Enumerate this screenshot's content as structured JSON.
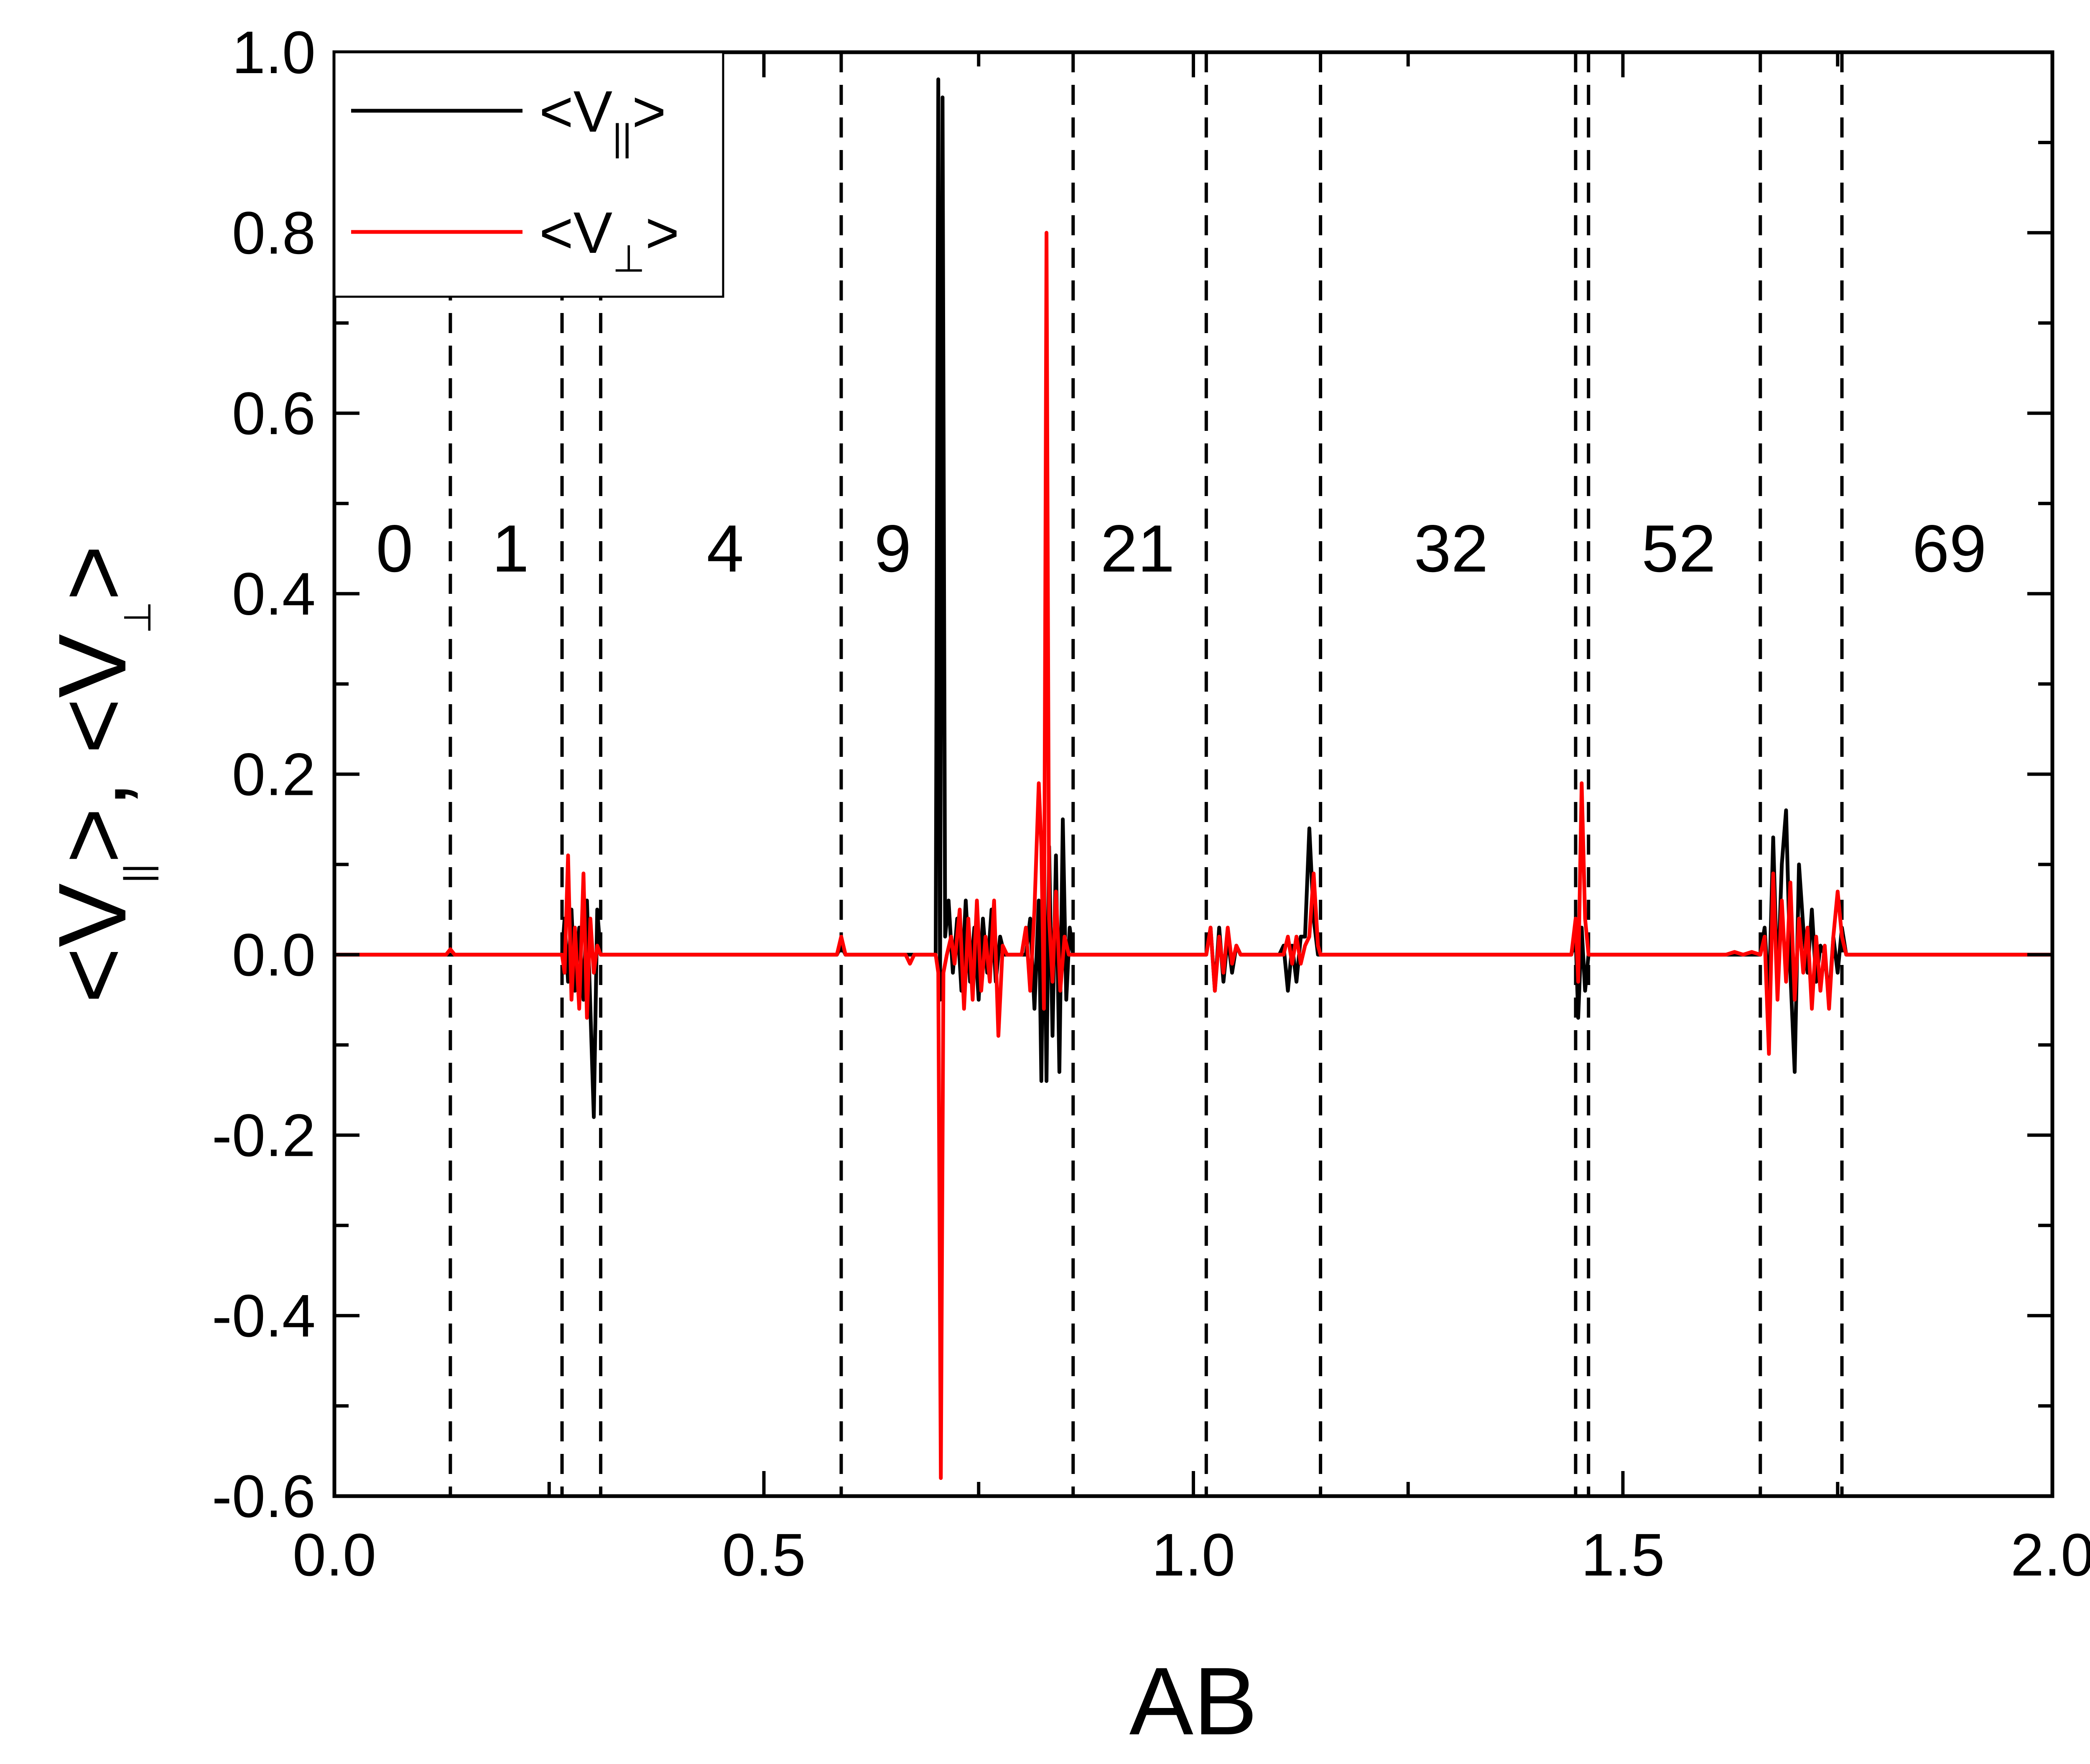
{
  "chart_data": {
    "type": "line",
    "xlabel": "AB",
    "ylabel": {
      "prefix": "<V",
      "parallel_sub": "||",
      "sep": ">, <V",
      "perp_sub": "⊥",
      "suffix": ">"
    },
    "xlim": [
      0.0,
      2.0
    ],
    "ylim": [
      -0.6,
      1.0
    ],
    "x_ticks": [
      0.0,
      0.5,
      1.0,
      1.5,
      2.0
    ],
    "x_tick_labels": [
      "0.0",
      "0.5",
      "1.0",
      "1.5",
      "2.0"
    ],
    "y_ticks": [
      -0.6,
      -0.4,
      -0.2,
      0.0,
      0.2,
      0.4,
      0.6,
      0.8,
      1.0
    ],
    "y_tick_labels": [
      "-0.6",
      "-0.4",
      "-0.2",
      "0.0",
      "0.2",
      "0.4",
      "0.6",
      "0.8",
      "1.0"
    ],
    "grid": false,
    "legend": {
      "placement": "top-left",
      "entries": [
        {
          "text": "<V",
          "sub": "||",
          "close": ">",
          "color": "#000000"
        },
        {
          "text": "<V",
          "sub": "⊥",
          "close": ">",
          "color": "#ff0000"
        }
      ]
    },
    "vlines": [
      0.135,
      0.265,
      0.31,
      0.59,
      0.86,
      1.015,
      1.148,
      1.445,
      1.46,
      1.66,
      1.755
    ],
    "region_labels": [
      {
        "text": "0",
        "x": 0.07
      },
      {
        "text": "1",
        "x": 0.205
      },
      {
        "text": "4",
        "x": 0.455
      },
      {
        "text": "9",
        "x": 0.65
      },
      {
        "text": "21",
        "x": 0.935
      },
      {
        "text": "32",
        "x": 1.3
      },
      {
        "text": "52",
        "x": 1.565
      },
      {
        "text": "69",
        "x": 1.88
      }
    ],
    "region_label_y": 0.45,
    "series": [
      {
        "name": "<V||>",
        "color": "#000000",
        "points": [
          [
            0.0,
            0.0
          ],
          [
            0.265,
            0.0
          ],
          [
            0.268,
            0.04
          ],
          [
            0.272,
            -0.03
          ],
          [
            0.276,
            0.05
          ],
          [
            0.28,
            -0.04
          ],
          [
            0.285,
            0.03
          ],
          [
            0.29,
            -0.05
          ],
          [
            0.294,
            0.06
          ],
          [
            0.298,
            -0.06
          ],
          [
            0.302,
            -0.18
          ],
          [
            0.306,
            0.05
          ],
          [
            0.31,
            0.0
          ],
          [
            0.585,
            0.0
          ],
          [
            0.59,
            0.01
          ],
          [
            0.595,
            0.0
          ],
          [
            0.7,
            0.0
          ],
          [
            0.703,
            0.97
          ],
          [
            0.705,
            -0.05
          ],
          [
            0.708,
            0.95
          ],
          [
            0.711,
            0.02
          ],
          [
            0.715,
            0.06
          ],
          [
            0.72,
            -0.02
          ],
          [
            0.725,
            0.04
          ],
          [
            0.73,
            -0.04
          ],
          [
            0.735,
            0.06
          ],
          [
            0.74,
            -0.03
          ],
          [
            0.745,
            0.03
          ],
          [
            0.75,
            -0.05
          ],
          [
            0.755,
            0.04
          ],
          [
            0.76,
            -0.02
          ],
          [
            0.765,
            0.05
          ],
          [
            0.77,
            -0.03
          ],
          [
            0.775,
            0.02
          ],
          [
            0.78,
            0.0
          ],
          [
            0.805,
            0.0
          ],
          [
            0.81,
            0.04
          ],
          [
            0.815,
            -0.06
          ],
          [
            0.82,
            0.06
          ],
          [
            0.823,
            -0.14
          ],
          [
            0.826,
            0.1
          ],
          [
            0.829,
            -0.14
          ],
          [
            0.832,
            0.12
          ],
          [
            0.836,
            -0.09
          ],
          [
            0.84,
            0.11
          ],
          [
            0.844,
            -0.13
          ],
          [
            0.848,
            0.15
          ],
          [
            0.852,
            -0.05
          ],
          [
            0.856,
            0.03
          ],
          [
            0.86,
            0.0
          ],
          [
            1.015,
            0.0
          ],
          [
            1.02,
            0.03
          ],
          [
            1.025,
            -0.04
          ],
          [
            1.03,
            0.03
          ],
          [
            1.035,
            -0.03
          ],
          [
            1.04,
            0.02
          ],
          [
            1.045,
            -0.02
          ],
          [
            1.05,
            0.01
          ],
          [
            1.055,
            0.0
          ],
          [
            1.1,
            0.0
          ],
          [
            1.105,
            0.01
          ],
          [
            1.11,
            -0.04
          ],
          [
            1.115,
            0.01
          ],
          [
            1.12,
            -0.03
          ],
          [
            1.125,
            0.02
          ],
          [
            1.13,
            0.02
          ],
          [
            1.135,
            0.14
          ],
          [
            1.14,
            0.04
          ],
          [
            1.145,
            0.0
          ],
          [
            1.44,
            0.0
          ],
          [
            1.445,
            0.02
          ],
          [
            1.448,
            -0.07
          ],
          [
            1.452,
            0.03
          ],
          [
            1.456,
            -0.04
          ],
          [
            1.46,
            0.0
          ],
          [
            1.66,
            0.0
          ],
          [
            1.665,
            0.03
          ],
          [
            1.67,
            -0.05
          ],
          [
            1.675,
            0.13
          ],
          [
            1.68,
            -0.04
          ],
          [
            1.685,
            0.1
          ],
          [
            1.69,
            0.16
          ],
          [
            1.695,
            -0.02
          ],
          [
            1.7,
            -0.13
          ],
          [
            1.705,
            0.1
          ],
          [
            1.71,
            0.03
          ],
          [
            1.715,
            -0.02
          ],
          [
            1.72,
            0.05
          ],
          [
            1.725,
            -0.03
          ],
          [
            1.73,
            0.01
          ],
          [
            1.735,
            0.0
          ],
          [
            1.74,
            -0.05
          ],
          [
            1.745,
            0.02
          ],
          [
            1.75,
            -0.02
          ],
          [
            1.755,
            0.03
          ],
          [
            1.76,
            0.0
          ],
          [
            2.0,
            0.0
          ]
        ]
      },
      {
        "name": "<V⊥>",
        "color": "#ff0000",
        "points": [
          [
            0.0,
            0.0
          ],
          [
            0.13,
            0.0
          ],
          [
            0.135,
            0.006
          ],
          [
            0.14,
            0.0
          ],
          [
            0.265,
            0.0
          ],
          [
            0.268,
            -0.02
          ],
          [
            0.272,
            0.11
          ],
          [
            0.276,
            -0.05
          ],
          [
            0.28,
            0.03
          ],
          [
            0.285,
            -0.06
          ],
          [
            0.29,
            0.09
          ],
          [
            0.294,
            -0.07
          ],
          [
            0.298,
            0.04
          ],
          [
            0.302,
            -0.02
          ],
          [
            0.306,
            0.01
          ],
          [
            0.31,
            0.0
          ],
          [
            0.585,
            0.0
          ],
          [
            0.59,
            0.02
          ],
          [
            0.595,
            0.0
          ],
          [
            0.665,
            0.0
          ],
          [
            0.67,
            -0.01
          ],
          [
            0.675,
            0.0
          ],
          [
            0.7,
            0.0
          ],
          [
            0.703,
            -0.02
          ],
          [
            0.706,
            -0.58
          ],
          [
            0.709,
            -0.02
          ],
          [
            0.713,
            0.0
          ],
          [
            0.718,
            0.02
          ],
          [
            0.722,
            -0.01
          ],
          [
            0.728,
            0.05
          ],
          [
            0.733,
            -0.06
          ],
          [
            0.738,
            0.04
          ],
          [
            0.743,
            -0.05
          ],
          [
            0.748,
            0.06
          ],
          [
            0.753,
            -0.04
          ],
          [
            0.758,
            0.02
          ],
          [
            0.763,
            -0.03
          ],
          [
            0.768,
            0.06
          ],
          [
            0.773,
            -0.09
          ],
          [
            0.778,
            0.01
          ],
          [
            0.783,
            0.0
          ],
          [
            0.8,
            0.0
          ],
          [
            0.805,
            0.03
          ],
          [
            0.81,
            -0.04
          ],
          [
            0.815,
            0.05
          ],
          [
            0.82,
            0.19
          ],
          [
            0.823,
            0.12
          ],
          [
            0.826,
            -0.06
          ],
          [
            0.829,
            0.8
          ],
          [
            0.832,
            0.04
          ],
          [
            0.836,
            -0.03
          ],
          [
            0.84,
            0.07
          ],
          [
            0.845,
            -0.04
          ],
          [
            0.85,
            0.02
          ],
          [
            0.855,
            0.0
          ],
          [
            1.015,
            0.0
          ],
          [
            1.02,
            0.03
          ],
          [
            1.025,
            -0.04
          ],
          [
            1.03,
            0.02
          ],
          [
            1.035,
            -0.02
          ],
          [
            1.04,
            0.03
          ],
          [
            1.045,
            -0.01
          ],
          [
            1.05,
            0.01
          ],
          [
            1.055,
            0.0
          ],
          [
            1.105,
            0.0
          ],
          [
            1.11,
            0.02
          ],
          [
            1.115,
            -0.01
          ],
          [
            1.12,
            0.02
          ],
          [
            1.125,
            -0.01
          ],
          [
            1.13,
            0.01
          ],
          [
            1.135,
            0.02
          ],
          [
            1.14,
            0.09
          ],
          [
            1.145,
            0.01
          ],
          [
            1.148,
            0.0
          ],
          [
            1.44,
            0.0
          ],
          [
            1.445,
            0.04
          ],
          [
            1.448,
            -0.03
          ],
          [
            1.452,
            0.19
          ],
          [
            1.456,
            0.04
          ],
          [
            1.46,
            0.0
          ],
          [
            1.62,
            0.0
          ],
          [
            1.63,
            0.003
          ],
          [
            1.64,
            0.0
          ],
          [
            1.65,
            0.003
          ],
          [
            1.66,
            0.0
          ],
          [
            1.665,
            0.02
          ],
          [
            1.67,
            -0.11
          ],
          [
            1.675,
            0.09
          ],
          [
            1.68,
            -0.05
          ],
          [
            1.685,
            0.06
          ],
          [
            1.69,
            -0.03
          ],
          [
            1.695,
            0.08
          ],
          [
            1.7,
            -0.05
          ],
          [
            1.705,
            0.04
          ],
          [
            1.71,
            -0.02
          ],
          [
            1.715,
            0.03
          ],
          [
            1.72,
            -0.06
          ],
          [
            1.725,
            0.02
          ],
          [
            1.73,
            -0.04
          ],
          [
            1.735,
            0.01
          ],
          [
            1.74,
            -0.06
          ],
          [
            1.745,
            0.02
          ],
          [
            1.75,
            0.07
          ],
          [
            1.755,
            0.02
          ],
          [
            1.76,
            0.0
          ],
          [
            2.0,
            0.0
          ]
        ]
      }
    ]
  }
}
